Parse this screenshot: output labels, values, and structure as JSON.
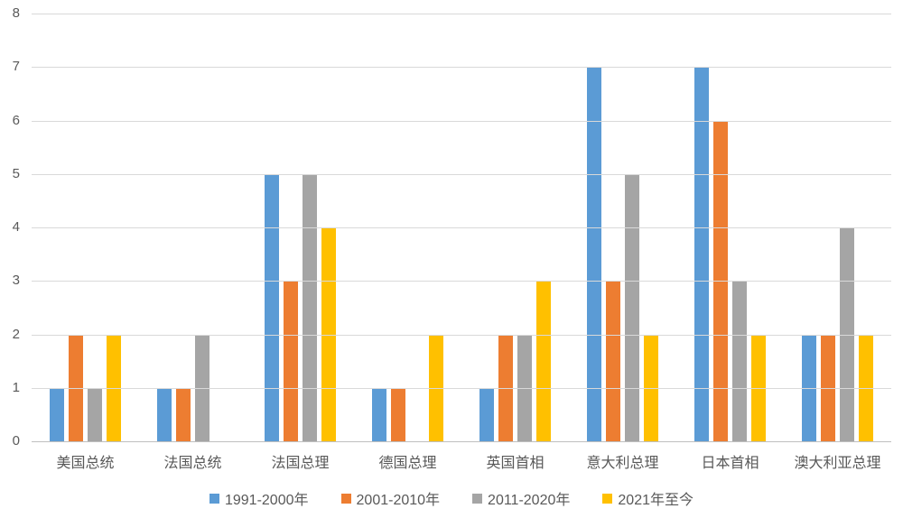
{
  "chart_data": {
    "type": "bar",
    "title": "",
    "xlabel": "",
    "ylabel": "",
    "categories": [
      "美国总统",
      "法国总统",
      "法国总理",
      "德国总理",
      "英国首相",
      "意大利总理",
      "日本首相",
      "澳大利亚总理"
    ],
    "series": [
      {
        "name": "1991-2000年",
        "color": "#5B9BD5",
        "values": [
          1,
          1,
          5,
          1,
          1,
          7,
          7,
          2
        ]
      },
      {
        "name": "2001-2010年",
        "color": "#ED7D31",
        "values": [
          2,
          1,
          3,
          1,
          2,
          3,
          6,
          2
        ]
      },
      {
        "name": "2011-2020年",
        "color": "#A5A5A5",
        "values": [
          1,
          2,
          5,
          0,
          2,
          5,
          3,
          4
        ]
      },
      {
        "name": "2021年至今",
        "color": "#FFC000",
        "values": [
          2,
          0,
          4,
          2,
          3,
          2,
          2,
          2
        ]
      }
    ],
    "ylim": [
      0,
      8
    ],
    "ytick_step": 1,
    "yticks": [
      0,
      1,
      2,
      3,
      4,
      5,
      6,
      7,
      8
    ],
    "grid": true,
    "gridline_color": "#D9D9D9",
    "axis_line_color": "#BFBFBF",
    "tick_label_color": "#595959",
    "legend_position": "bottom"
  }
}
